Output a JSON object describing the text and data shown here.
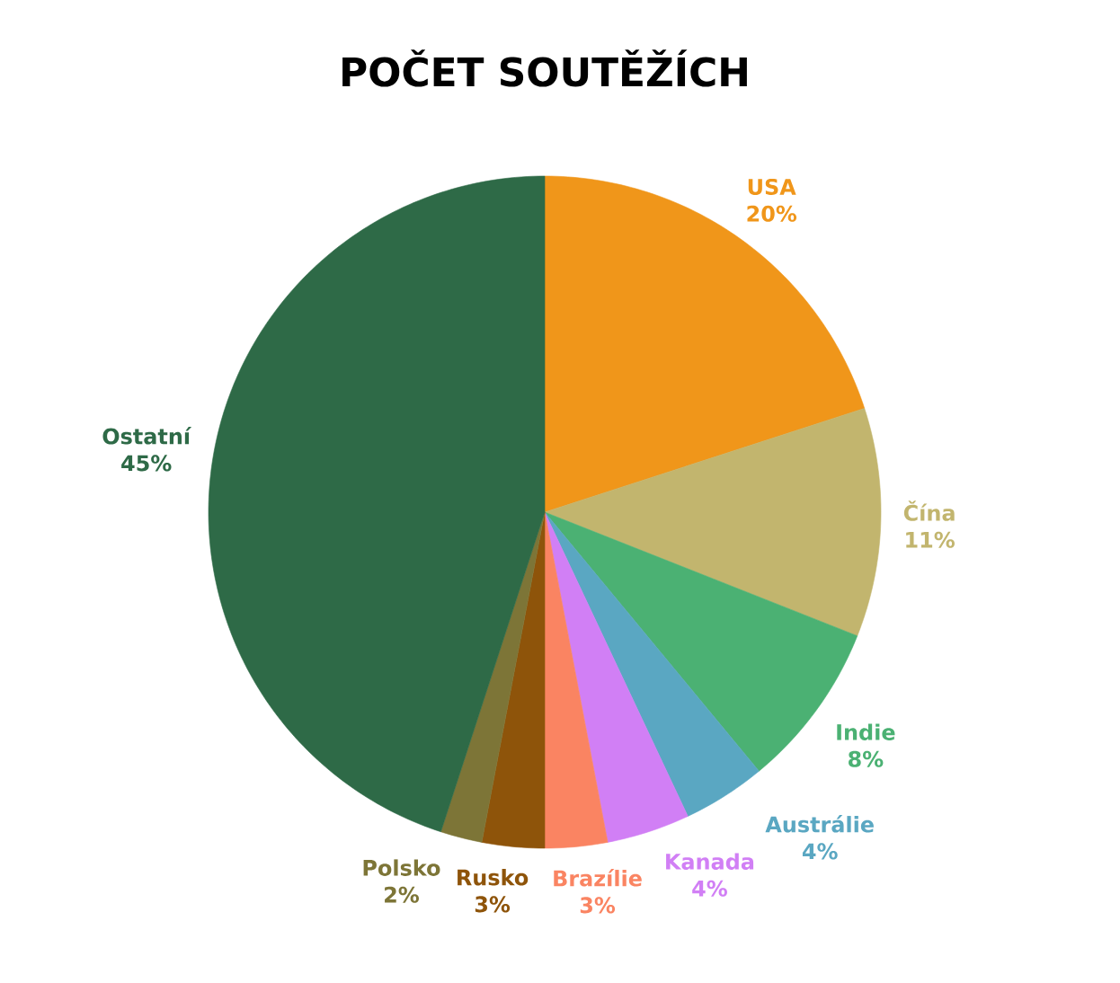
{
  "chart_data": {
    "type": "pie",
    "title": "POČET SOUTĚŽÍCH",
    "categories": [
      "USA",
      "Čína",
      "Indie",
      "Austrálie",
      "Kanada",
      "Brazílie",
      "Rusko",
      "Polsko",
      "Ostatní"
    ],
    "values": [
      20,
      11,
      8,
      4,
      4,
      3,
      3,
      2,
      45
    ],
    "value_labels": [
      "20%",
      "11%",
      "8%",
      "4%",
      "4%",
      "3%",
      "3%",
      "2%",
      "45%"
    ],
    "colors": [
      "#f0961a",
      "#c2b56e",
      "#4bb173",
      "#5aa7c2",
      "#d17ff5",
      "#fa8462",
      "#8e540a",
      "#7d7537",
      "#2e6a47"
    ]
  }
}
